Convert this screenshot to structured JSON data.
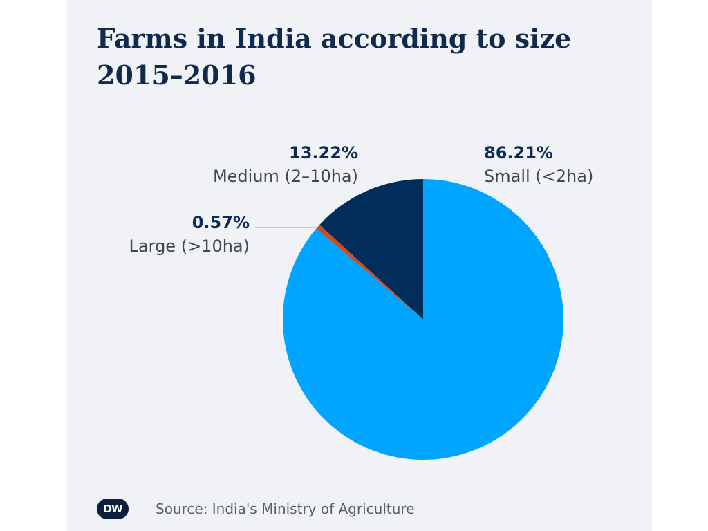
{
  "title_line1": "Farms in India according to size",
  "title_line2": "2015–2016",
  "source": "Source: India's Ministry of Agriculture",
  "logo_text": "DW",
  "chart_data": {
    "type": "pie",
    "title": "Farms in India according to size 2015–2016",
    "start": "12 o'clock",
    "direction": "clockwise",
    "slices": [
      {
        "label": "Small (<2ha)",
        "value": 86.21,
        "display": "86.21%",
        "color": "#00a5ff"
      },
      {
        "label": "Large (>10ha)",
        "value": 0.57,
        "display": "0.57%",
        "color": "#d44a1f"
      },
      {
        "label": "Medium (2–10ha)",
        "value": 13.22,
        "display": "13.22%",
        "color": "#002d5a"
      }
    ]
  }
}
